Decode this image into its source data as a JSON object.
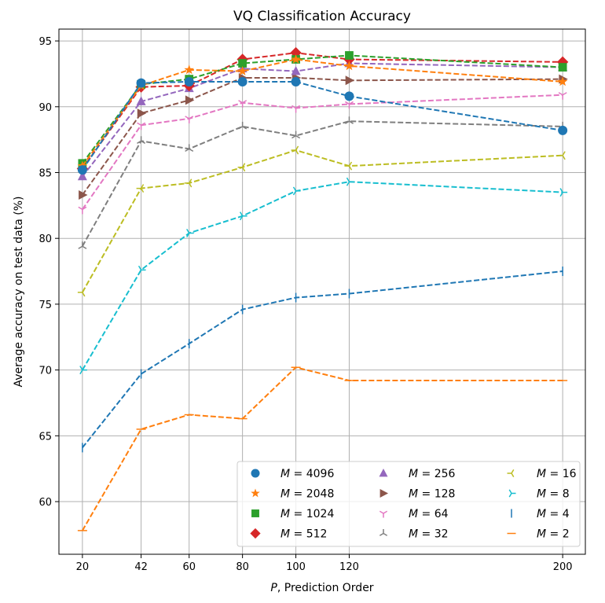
{
  "chart_data": {
    "type": "line",
    "title": "VQ Classification Accuracy",
    "xlabel": "P, Prediction Order",
    "ylabel": "Average accuracy on test data (%)",
    "x": [
      20,
      42,
      60,
      80,
      100,
      120,
      200
    ],
    "xticks": [
      "20",
      "42",
      "60",
      "80",
      "100",
      "120",
      "200"
    ],
    "yticks": [
      "60",
      "65",
      "70",
      "75",
      "80",
      "85",
      "90",
      "95"
    ],
    "xlim": [
      11.2,
      208.5
    ],
    "ylim": [
      56,
      95.9
    ],
    "grid": true,
    "legend_placement": "lower-right",
    "series": [
      {
        "name": "M = 4096",
        "m": "4096",
        "color": "#1f77b4",
        "marker": "circle",
        "values": [
          85.2,
          91.8,
          91.9,
          91.9,
          91.9,
          90.8,
          88.2
        ]
      },
      {
        "name": "M = 2048",
        "m": "2048",
        "color": "#ff7f0e",
        "marker": "star",
        "values": [
          85.5,
          91.6,
          92.8,
          92.7,
          93.6,
          93.1,
          91.9
        ]
      },
      {
        "name": "M = 1024",
        "m": "1024",
        "color": "#2ca02c",
        "marker": "square",
        "values": [
          85.7,
          91.7,
          92.1,
          93.3,
          93.6,
          93.9,
          93.0
        ]
      },
      {
        "name": "M = 512",
        "m": "512",
        "color": "#d62728",
        "marker": "diamond",
        "values": [
          85.3,
          91.5,
          91.6,
          93.6,
          94.1,
          93.6,
          93.4
        ]
      },
      {
        "name": "M = 256",
        "m": "256",
        "color": "#9467bd",
        "marker": "triangle-up",
        "values": [
          84.7,
          90.4,
          91.4,
          92.9,
          92.7,
          93.3,
          93.0
        ]
      },
      {
        "name": "M = 128",
        "m": "128",
        "color": "#8c564b",
        "marker": "triangle-right",
        "values": [
          83.3,
          89.5,
          90.5,
          92.2,
          92.2,
          92.0,
          92.1
        ]
      },
      {
        "name": "M = 64",
        "m": "64",
        "color": "#e377c2",
        "marker": "tri-down",
        "values": [
          82.2,
          88.6,
          89.1,
          90.3,
          89.9,
          90.2,
          90.9
        ]
      },
      {
        "name": "M = 32",
        "m": "32",
        "color": "#7f7f7f",
        "marker": "tri-up",
        "values": [
          79.4,
          87.4,
          86.8,
          88.5,
          87.8,
          88.9,
          88.5
        ]
      },
      {
        "name": "M = 16",
        "m": "16",
        "color": "#bcbd22",
        "marker": "tri-left",
        "values": [
          75.9,
          83.8,
          84.2,
          85.4,
          86.7,
          85.5,
          86.3
        ]
      },
      {
        "name": "M = 8",
        "m": "8",
        "color": "#17becf",
        "marker": "tri-right",
        "values": [
          70.0,
          77.6,
          80.4,
          81.7,
          83.6,
          84.3,
          83.5
        ]
      },
      {
        "name": "M = 4",
        "m": "4",
        "color": "#1f77b4",
        "marker": "vline",
        "values": [
          64.1,
          69.7,
          72.0,
          74.6,
          75.5,
          75.8,
          77.5
        ]
      },
      {
        "name": "M = 2",
        "m": "2",
        "color": "#ff7f0e",
        "marker": "hline",
        "values": [
          57.8,
          65.5,
          66.6,
          66.3,
          70.2,
          69.2,
          69.2
        ]
      }
    ]
  }
}
